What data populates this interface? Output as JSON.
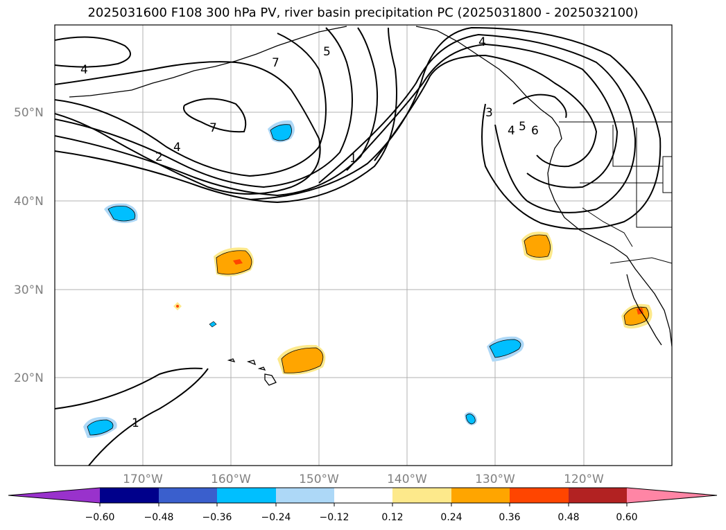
{
  "title": "2025031600 F108 300 hPa PV, river basin precipitation PC (2025031800 - 2025032100)",
  "map": {
    "lon_labels": [
      "170°W",
      "160°W",
      "150°W",
      "140°W",
      "130°W",
      "120°W"
    ],
    "lat_labels": [
      "50°N",
      "40°N",
      "30°N",
      "20°N"
    ],
    "pv_contour_labels": [
      "4",
      "7",
      "5",
      "7",
      "4",
      "2",
      "1",
      "3",
      "4",
      "5",
      "6",
      "1",
      "4"
    ]
  },
  "colorbar": {
    "ticks": [
      "−0.60",
      "−0.48",
      "−0.36",
      "−0.24",
      "−0.12",
      "0.12",
      "0.24",
      "0.36",
      "0.48",
      "0.60"
    ],
    "colors": [
      "#9932cc",
      "#00008b",
      "#3a5fcd",
      "#00bfff",
      "#add8f7",
      "#ffffff",
      "#fde98b",
      "#ffa500",
      "#ff4500",
      "#b22222",
      "#ff85a5"
    ]
  }
}
